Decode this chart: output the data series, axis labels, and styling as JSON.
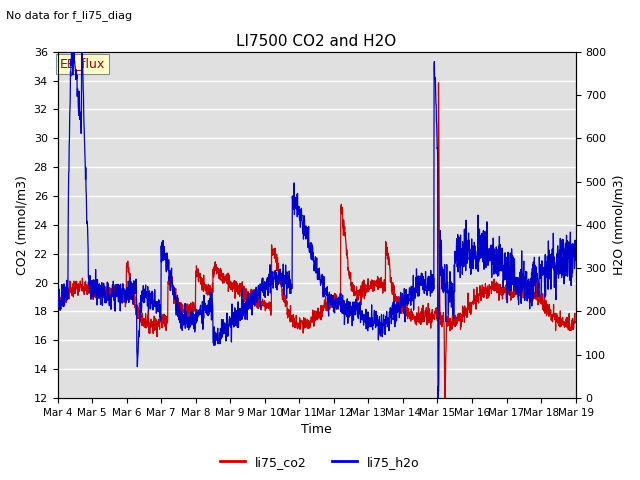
{
  "title": "LI7500 CO2 and H2O",
  "suptitle": "No data for f_li75_diag",
  "xlabel": "Time",
  "ylabel_left": "CO2 (mmol/m3)",
  "ylabel_right": "H2O (mmol/m3)",
  "ylim_left": [
    12,
    36
  ],
  "ylim_right": [
    0,
    800
  ],
  "yticks_left": [
    12,
    14,
    16,
    18,
    20,
    22,
    24,
    26,
    28,
    30,
    32,
    34,
    36
  ],
  "yticks_right": [
    0,
    100,
    200,
    300,
    400,
    500,
    600,
    700,
    800
  ],
  "color_co2": "#cc0000",
  "color_h2o": "#0000cc",
  "legend_label_co2": "li75_co2",
  "legend_label_h2o": "li75_h2o",
  "annotation_box": "EE_flux",
  "background_color": "#e0e0e0",
  "grid_color": "#ffffff",
  "fig_bg": "#ffffff",
  "days": 15,
  "n_points": 2000
}
